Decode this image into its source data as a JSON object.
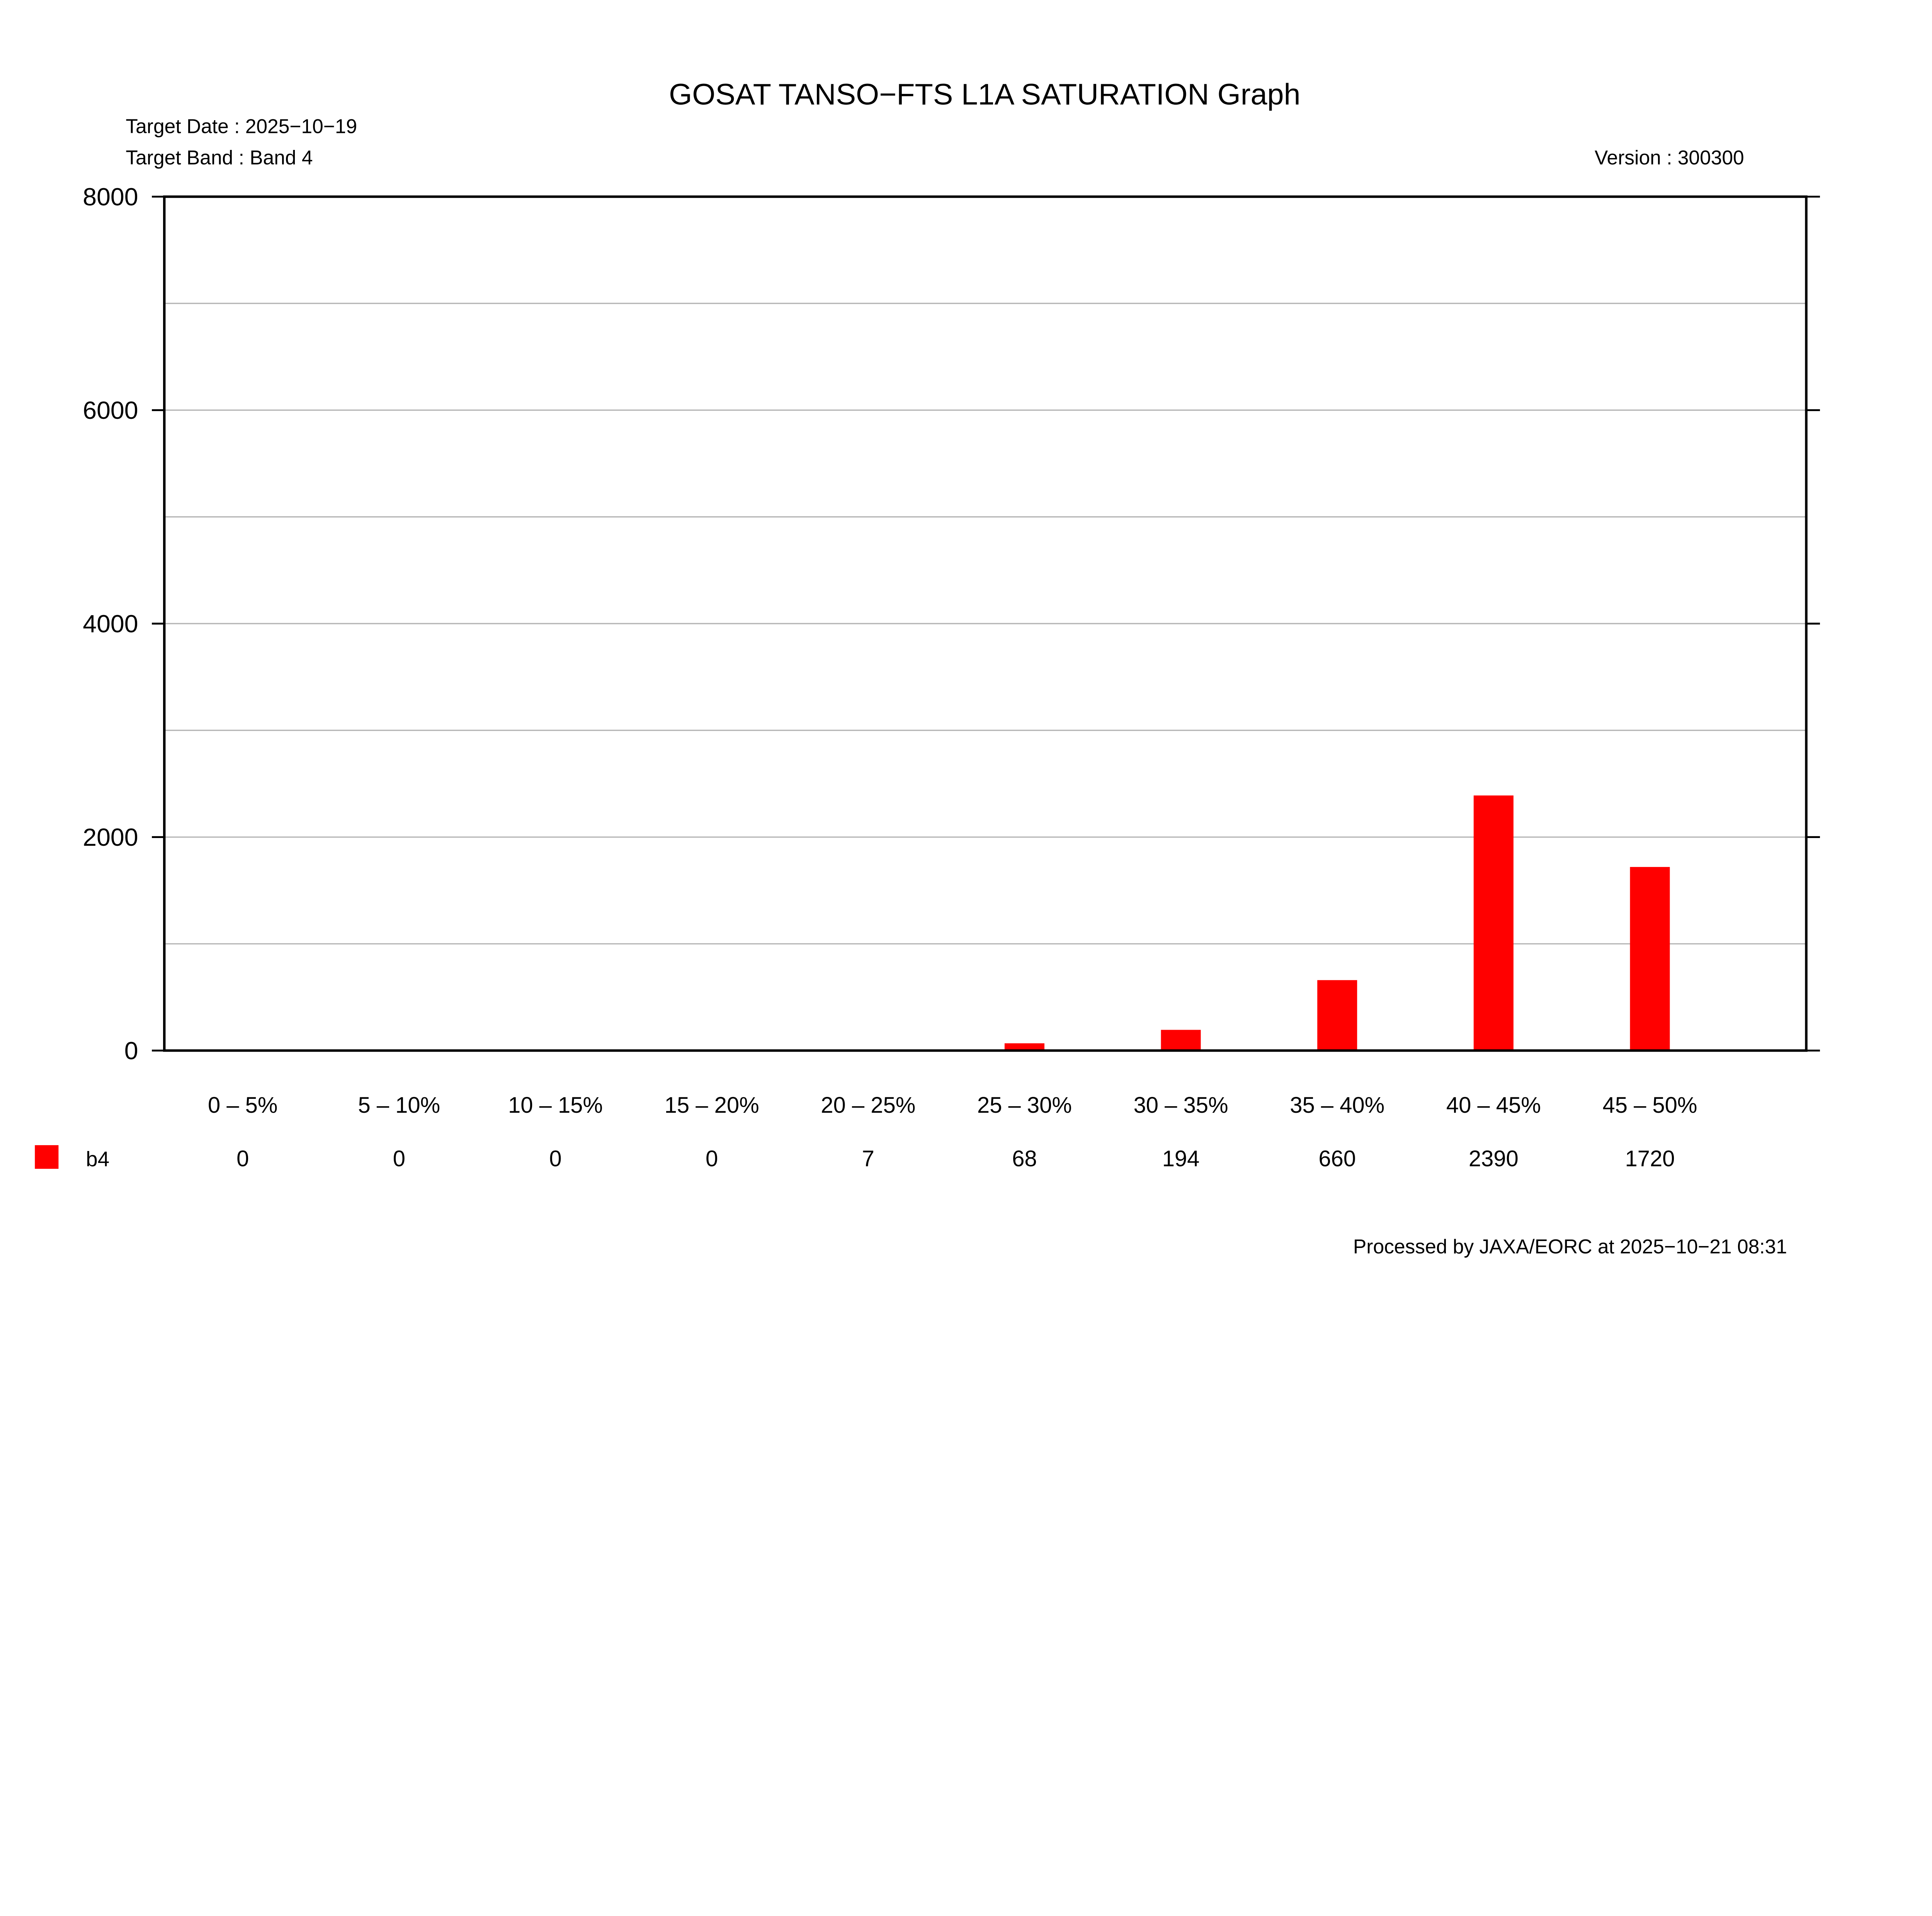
{
  "chart_data": {
    "type": "bar",
    "title": "GOSAT TANSO−FTS L1A SATURATION Graph",
    "target_date": "Target Date : 2025−10−19",
    "target_band": "Target Band : Band 4",
    "version": "Version : 300300",
    "footer": "Processed by JAXA/EORC at 2025−10−21 08:31",
    "categories": [
      "0 –  5%",
      "5 – 10%",
      "10 – 15%",
      "15 – 20%",
      "20 – 25%",
      "25 – 30%",
      "30 – 35%",
      "35 – 40%",
      "40 – 45%",
      "45 – 50%"
    ],
    "series": [
      {
        "name": "b4",
        "color": "#ff0000",
        "values": [
          0,
          0,
          0,
          0,
          7,
          68,
          194,
          660,
          2390,
          1720
        ]
      }
    ],
    "value_labels": [
      "0",
      "0",
      "0",
      "0",
      "7",
      "68",
      "194",
      "660",
      "2390",
      "1720"
    ],
    "ylim": [
      0,
      8000
    ],
    "yticks": [
      "0",
      "2000",
      "4000",
      "6000",
      "8000"
    ],
    "minor_grid_step": 1000,
    "grid": true,
    "legend": "bottom-left table"
  }
}
